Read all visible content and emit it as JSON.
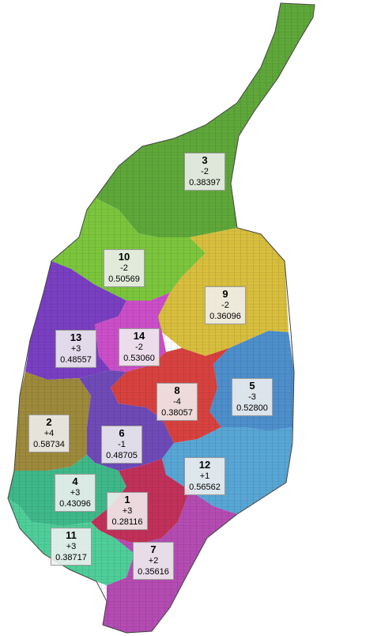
{
  "map": {
    "districts": [
      {
        "id": "3",
        "change": "-2",
        "value": "0.38397",
        "color": "#5fa83a"
      },
      {
        "id": "10",
        "change": "-2",
        "value": "0.50569",
        "color": "#7cc63d"
      },
      {
        "id": "9",
        "change": "-2",
        "value": "0.36096",
        "color": "#d9bf3e"
      },
      {
        "id": "13",
        "change": "+3",
        "value": "0.48557",
        "color": "#7a3fc3"
      },
      {
        "id": "14",
        "change": "-2",
        "value": "0.53060",
        "color": "#cc4fc9"
      },
      {
        "id": "5",
        "change": "-3",
        "value": "0.52800",
        "color": "#4e8fcc"
      },
      {
        "id": "8",
        "change": "-4",
        "value": "0.38057",
        "color": "#d8423f"
      },
      {
        "id": "2",
        "change": "+4",
        "value": "0.58734",
        "color": "#9e8a3c"
      },
      {
        "id": "6",
        "change": "-1",
        "value": "0.48705",
        "color": "#6f4bb8"
      },
      {
        "id": "12",
        "change": "+1",
        "value": "0.56562",
        "color": "#58a7d6"
      },
      {
        "id": "4",
        "change": "+3",
        "value": "0.43096",
        "color": "#3fb98a"
      },
      {
        "id": "1",
        "change": "+3",
        "value": "0.28116",
        "color": "#c2315a"
      },
      {
        "id": "11",
        "change": "+3",
        "value": "0.38717",
        "color": "#4fcf9a"
      },
      {
        "id": "7",
        "change": "+2",
        "value": "0.35616",
        "color": "#b54cb3"
      }
    ]
  }
}
